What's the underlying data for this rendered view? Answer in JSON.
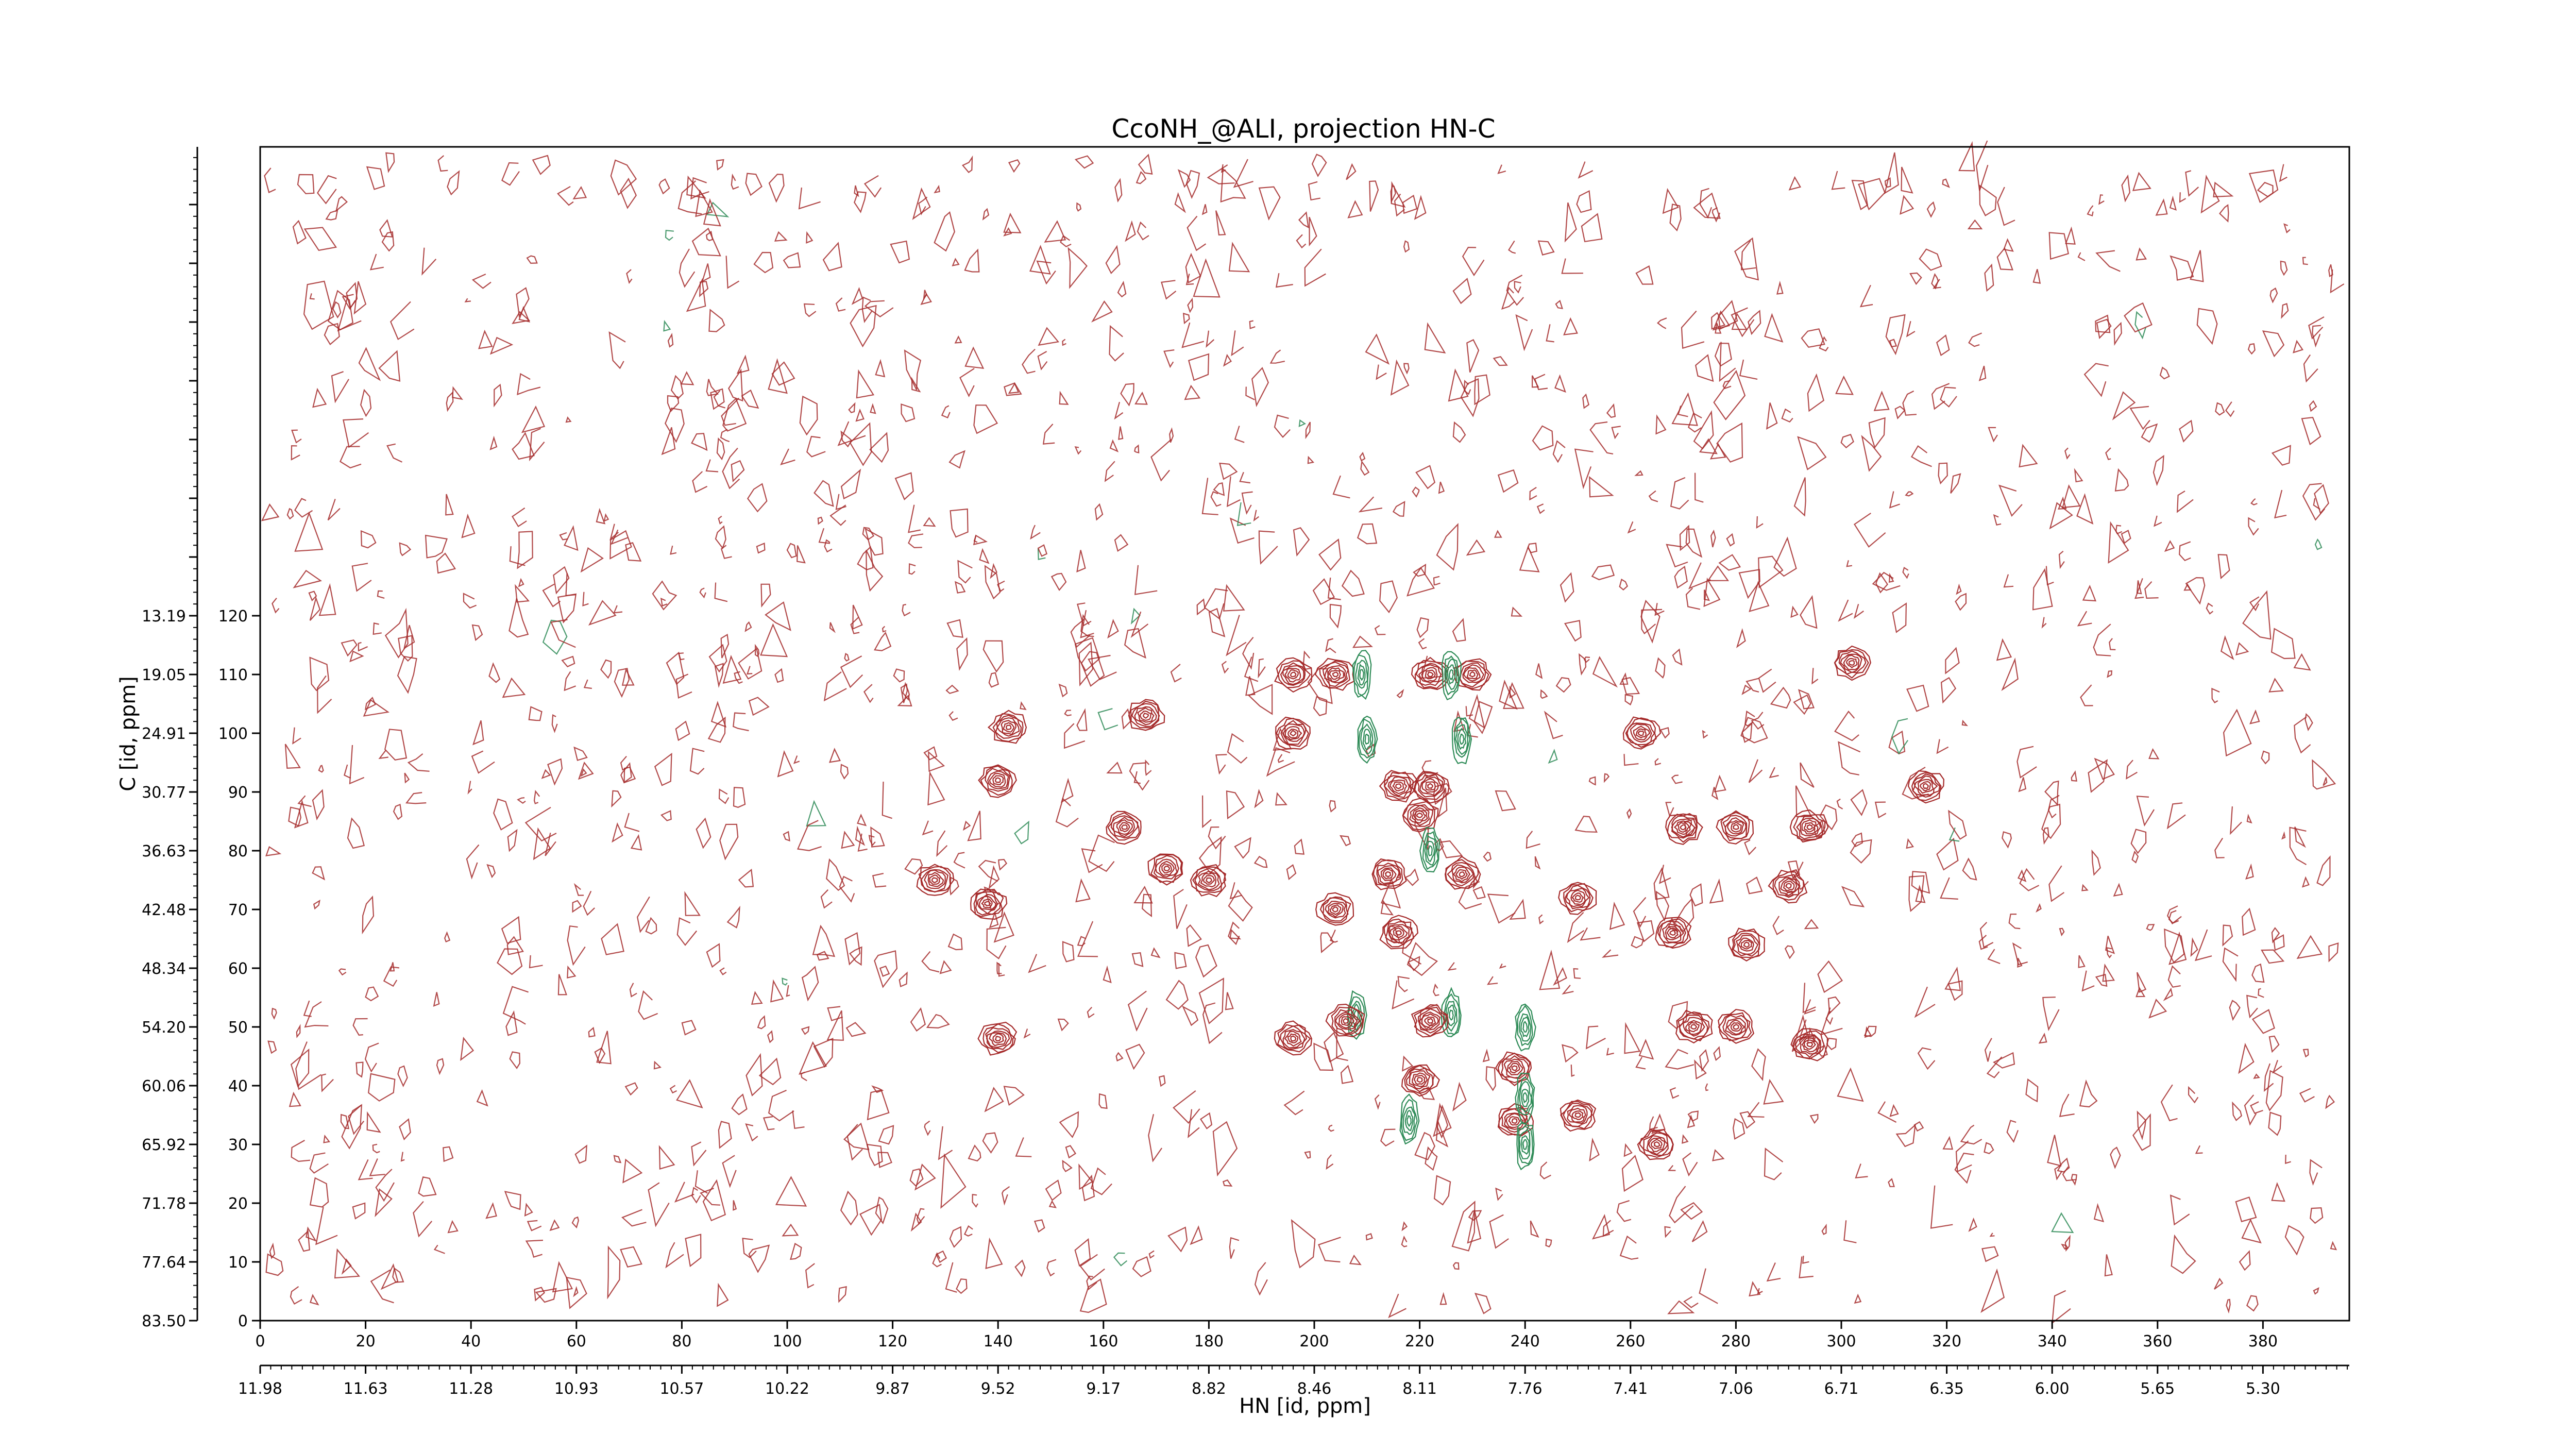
{
  "chart_data": {
    "type": "contour",
    "title": "CcoNH_@ALI, projection HN-C",
    "xlabel": "HN [id, ppm]",
    "ylabel": "C [id, ppm]",
    "x_index_ticks": [
      "0",
      "20",
      "40",
      "60",
      "80",
      "100",
      "120",
      "140",
      "160",
      "180",
      "200",
      "220",
      "240",
      "260",
      "280",
      "300",
      "320",
      "340",
      "360",
      "380"
    ],
    "x_ppm_ticks": [
      "11.98",
      "11.63",
      "11.28",
      "10.93",
      "10.57",
      "10.22",
      "9.87",
      "9.52",
      "9.17",
      "8.82",
      "8.46",
      "8.11",
      "7.76",
      "7.41",
      "7.06",
      "6.71",
      "6.35",
      "6.00",
      "5.65",
      "5.30"
    ],
    "y_index_ticks": [
      "0",
      "10",
      "20",
      "30",
      "40",
      "50",
      "60",
      "70",
      "80",
      "90",
      "100",
      "110",
      "120"
    ],
    "y_ppm_ticks": [
      "83.50",
      "77.64",
      "71.78",
      "65.92",
      "60.06",
      "54.20",
      "48.34",
      "42.48",
      "36.63",
      "30.77",
      "24.91",
      "19.05",
      "13.19"
    ],
    "xlim": [
      0,
      400
    ],
    "ylim": [
      0,
      125
    ],
    "positive_color": "#a52a2a",
    "negative_color": "#2e8b57",
    "peaks": [
      {
        "x": 196,
        "y": 110,
        "sign": "positive"
      },
      {
        "x": 204,
        "y": 110,
        "sign": "positive"
      },
      {
        "x": 222,
        "y": 110,
        "sign": "positive"
      },
      {
        "x": 230,
        "y": 110,
        "sign": "positive"
      },
      {
        "x": 209,
        "y": 110,
        "sign": "negative"
      },
      {
        "x": 226,
        "y": 110,
        "sign": "negative"
      },
      {
        "x": 210,
        "y": 99,
        "sign": "negative"
      },
      {
        "x": 228,
        "y": 99,
        "sign": "negative"
      },
      {
        "x": 196,
        "y": 100,
        "sign": "positive"
      },
      {
        "x": 216,
        "y": 91,
        "sign": "positive"
      },
      {
        "x": 222,
        "y": 91,
        "sign": "positive"
      },
      {
        "x": 220,
        "y": 86,
        "sign": "positive"
      },
      {
        "x": 222,
        "y": 80,
        "sign": "negative"
      },
      {
        "x": 214,
        "y": 76,
        "sign": "positive"
      },
      {
        "x": 228,
        "y": 76,
        "sign": "positive"
      },
      {
        "x": 204,
        "y": 70,
        "sign": "positive"
      },
      {
        "x": 216,
        "y": 66,
        "sign": "positive"
      },
      {
        "x": 208,
        "y": 52,
        "sign": "negative"
      },
      {
        "x": 226,
        "y": 52,
        "sign": "negative"
      },
      {
        "x": 240,
        "y": 50,
        "sign": "negative"
      },
      {
        "x": 206,
        "y": 51,
        "sign": "positive"
      },
      {
        "x": 222,
        "y": 51,
        "sign": "positive"
      },
      {
        "x": 196,
        "y": 48,
        "sign": "positive"
      },
      {
        "x": 238,
        "y": 43,
        "sign": "positive"
      },
      {
        "x": 238,
        "y": 34,
        "sign": "positive"
      },
      {
        "x": 240,
        "y": 38,
        "sign": "negative"
      },
      {
        "x": 240,
        "y": 30,
        "sign": "negative"
      },
      {
        "x": 218,
        "y": 34,
        "sign": "negative"
      },
      {
        "x": 220,
        "y": 41,
        "sign": "positive"
      },
      {
        "x": 250,
        "y": 35,
        "sign": "positive"
      },
      {
        "x": 164,
        "y": 84,
        "sign": "positive"
      },
      {
        "x": 128,
        "y": 75,
        "sign": "positive"
      },
      {
        "x": 142,
        "y": 101,
        "sign": "positive"
      },
      {
        "x": 140,
        "y": 92,
        "sign": "positive"
      },
      {
        "x": 138,
        "y": 71,
        "sign": "positive"
      },
      {
        "x": 140,
        "y": 48,
        "sign": "positive"
      },
      {
        "x": 168,
        "y": 103,
        "sign": "positive"
      },
      {
        "x": 172,
        "y": 77,
        "sign": "positive"
      },
      {
        "x": 270,
        "y": 84,
        "sign": "positive"
      },
      {
        "x": 268,
        "y": 66,
        "sign": "positive"
      },
      {
        "x": 280,
        "y": 84,
        "sign": "positive"
      },
      {
        "x": 294,
        "y": 84,
        "sign": "positive"
      },
      {
        "x": 290,
        "y": 74,
        "sign": "positive"
      },
      {
        "x": 302,
        "y": 112,
        "sign": "positive"
      },
      {
        "x": 280,
        "y": 50,
        "sign": "positive"
      },
      {
        "x": 294,
        "y": 47,
        "sign": "positive"
      },
      {
        "x": 282,
        "y": 64,
        "sign": "positive"
      },
      {
        "x": 265,
        "y": 30,
        "sign": "positive"
      },
      {
        "x": 316,
        "y": 91,
        "sign": "positive"
      },
      {
        "x": 262,
        "y": 100,
        "sign": "positive"
      },
      {
        "x": 272,
        "y": 50,
        "sign": "positive"
      },
      {
        "x": 180,
        "y": 75,
        "sign": "positive"
      },
      {
        "x": 250,
        "y": 72,
        "sign": "positive"
      }
    ],
    "grid": false,
    "legend": "none"
  }
}
